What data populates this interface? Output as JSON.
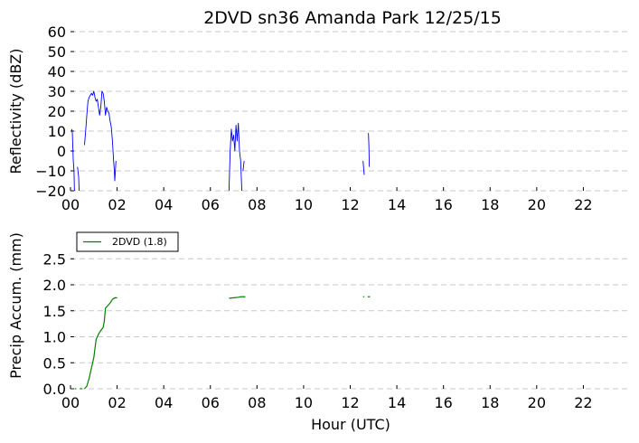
{
  "title": "2DVD sn36 Amanda Park 12/25/15",
  "chart_data": [
    {
      "type": "line",
      "ylabel": "Reflectivity (dBZ)",
      "xlabel": "",
      "xlim": [
        0,
        24
      ],
      "ylim": [
        -20,
        60
      ],
      "grid": true,
      "x_ticks": [
        0,
        2,
        4,
        6,
        8,
        10,
        12,
        14,
        16,
        18,
        20,
        22
      ],
      "x_tick_labels": [
        "00",
        "02",
        "04",
        "06",
        "08",
        "10",
        "12",
        "14",
        "16",
        "18",
        "20",
        "22"
      ],
      "y_ticks": [
        -20,
        -10,
        0,
        10,
        20,
        30,
        40,
        50,
        60
      ],
      "y_tick_labels": [
        "−20",
        "−10",
        "0",
        "10",
        "20",
        "30",
        "40",
        "50",
        "60"
      ],
      "series": [
        {
          "color": "#0000ff",
          "segments": [
            [
              [
                0.05,
                11
              ],
              [
                0.08,
                9
              ],
              [
                0.1,
                2
              ],
              [
                0.12,
                -5
              ],
              [
                0.15,
                -10
              ],
              [
                0.17,
                -20
              ]
            ],
            [
              [
                0.3,
                -8
              ],
              [
                0.32,
                -10
              ],
              [
                0.35,
                -13
              ],
              [
                0.37,
                -20
              ]
            ],
            [
              [
                0.6,
                3
              ],
              [
                0.65,
                10
              ],
              [
                0.7,
                18
              ],
              [
                0.75,
                25
              ],
              [
                0.8,
                27
              ],
              [
                0.85,
                28
              ],
              [
                0.9,
                29
              ],
              [
                0.95,
                28
              ],
              [
                1.0,
                30
              ],
              [
                1.05,
                27
              ],
              [
                1.1,
                25
              ],
              [
                1.15,
                26
              ],
              [
                1.2,
                22
              ],
              [
                1.25,
                18
              ],
              [
                1.3,
                22
              ],
              [
                1.35,
                30
              ],
              [
                1.4,
                29
              ],
              [
                1.45,
                25
              ],
              [
                1.5,
                18
              ],
              [
                1.55,
                22
              ],
              [
                1.6,
                20
              ],
              [
                1.65,
                19
              ],
              [
                1.7,
                15
              ],
              [
                1.75,
                12
              ],
              [
                1.8,
                5
              ],
              [
                1.85,
                -5
              ],
              [
                1.88,
                -10
              ],
              [
                1.9,
                -15
              ],
              [
                1.95,
                -5
              ]
            ],
            [
              [
                6.8,
                -20
              ],
              [
                6.85,
                0
              ],
              [
                6.9,
                11
              ],
              [
                6.95,
                5
              ],
              [
                7.0,
                8
              ],
              [
                7.05,
                0
              ],
              [
                7.1,
                13
              ],
              [
                7.15,
                5
              ],
              [
                7.2,
                14
              ],
              [
                7.25,
                0
              ],
              [
                7.3,
                -5
              ],
              [
                7.35,
                -20
              ]
            ],
            [
              [
                7.4,
                -10
              ],
              [
                7.45,
                -5
              ]
            ],
            [
              [
                12.55,
                -5
              ],
              [
                12.6,
                -12
              ]
            ],
            [
              [
                12.78,
                9
              ],
              [
                12.8,
                3
              ],
              [
                12.82,
                -8
              ]
            ]
          ]
        }
      ]
    },
    {
      "type": "line",
      "ylabel": "Precip Accum. (mm)",
      "xlabel": "Hour (UTC)",
      "xlim": [
        0,
        24
      ],
      "ylim": [
        0,
        2.8
      ],
      "grid": true,
      "legend": "top-left",
      "x_ticks": [
        0,
        2,
        4,
        6,
        8,
        10,
        12,
        14,
        16,
        18,
        20,
        22
      ],
      "x_tick_labels": [
        "00",
        "02",
        "04",
        "06",
        "08",
        "10",
        "12",
        "14",
        "16",
        "18",
        "20",
        "22"
      ],
      "y_ticks": [
        0,
        0.5,
        1.0,
        1.5,
        2.0,
        2.5
      ],
      "y_tick_labels": [
        "0.0",
        "0.5",
        "1.0",
        "1.5",
        "2.0",
        "2.5"
      ],
      "series": [
        {
          "name": "2DVD (1.8)",
          "color": "#008000",
          "segments": [
            [
              [
                0.05,
                0.0
              ],
              [
                0.1,
                0.0
              ]
            ],
            [
              [
                0.2,
                0.0
              ],
              [
                0.25,
                0.0
              ]
            ],
            [
              [
                0.4,
                0.0
              ],
              [
                0.5,
                0.0
              ]
            ],
            [
              [
                0.6,
                0.0
              ],
              [
                0.7,
                0.05
              ],
              [
                0.8,
                0.2
              ],
              [
                0.9,
                0.4
              ],
              [
                1.0,
                0.6
              ],
              [
                1.1,
                0.95
              ],
              [
                1.2,
                1.05
              ],
              [
                1.3,
                1.12
              ],
              [
                1.4,
                1.18
              ],
              [
                1.45,
                1.3
              ],
              [
                1.5,
                1.55
              ],
              [
                1.6,
                1.6
              ],
              [
                1.7,
                1.65
              ],
              [
                1.8,
                1.72
              ],
              [
                1.9,
                1.75
              ],
              [
                2.0,
                1.75
              ]
            ],
            [
              [
                6.8,
                1.74
              ],
              [
                7.0,
                1.75
              ],
              [
                7.2,
                1.76
              ],
              [
                7.3,
                1.77
              ],
              [
                7.4,
                1.77
              ],
              [
                7.5,
                1.77
              ]
            ],
            [
              [
                12.55,
                1.77
              ],
              [
                12.6,
                1.77
              ]
            ],
            [
              [
                12.75,
                1.77
              ],
              [
                12.85,
                1.77
              ]
            ]
          ]
        }
      ]
    }
  ]
}
